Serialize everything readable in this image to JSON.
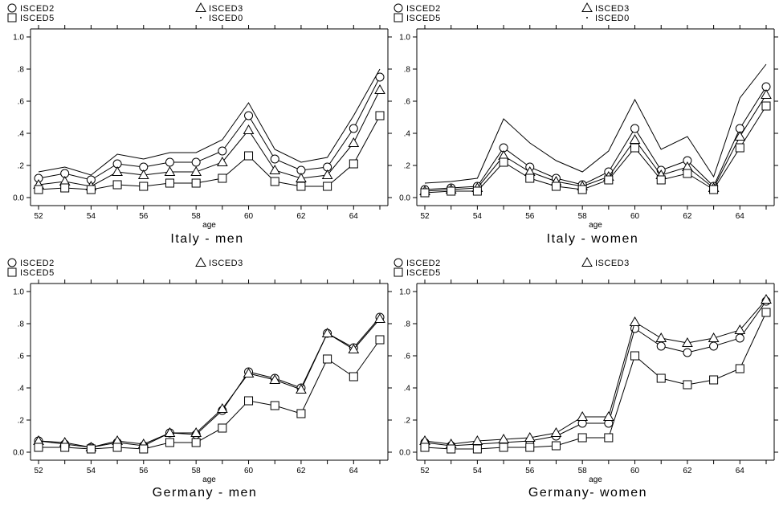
{
  "chart_data": [
    {
      "type": "line",
      "title": "Italy - men",
      "xlabel": "age",
      "ylabel": "",
      "x": [
        52,
        53,
        54,
        55,
        56,
        57,
        58,
        59,
        60,
        61,
        62,
        63,
        64,
        65
      ],
      "xticks": [
        "52",
        "54",
        "56",
        "58",
        "60",
        "62",
        "64"
      ],
      "yticks": [
        "0.0",
        ".2",
        ".4",
        ".6",
        ".8",
        "1.0"
      ],
      "ylim": [
        0,
        1
      ],
      "legend": [
        "ISCED2",
        "ISCED3",
        "ISCED5",
        "ISCED0"
      ],
      "series": [
        {
          "name": "ISCED2",
          "marker": "circle",
          "values": [
            0.12,
            0.15,
            0.11,
            0.21,
            0.19,
            0.22,
            0.22,
            0.29,
            0.51,
            0.24,
            0.17,
            0.19,
            0.43,
            0.75
          ]
        },
        {
          "name": "ISCED3",
          "marker": "triangle",
          "values": [
            0.08,
            0.1,
            0.07,
            0.16,
            0.14,
            0.16,
            0.16,
            0.22,
            0.42,
            0.17,
            0.12,
            0.14,
            0.34,
            0.67
          ]
        },
        {
          "name": "ISCED5",
          "marker": "square",
          "values": [
            0.05,
            0.06,
            0.05,
            0.08,
            0.07,
            0.09,
            0.09,
            0.12,
            0.26,
            0.1,
            0.07,
            0.07,
            0.21,
            0.51
          ]
        },
        {
          "name": "ISCED0",
          "marker": "none",
          "values": [
            0.16,
            0.19,
            0.14,
            0.27,
            0.24,
            0.28,
            0.28,
            0.36,
            0.59,
            0.3,
            0.22,
            0.25,
            0.51,
            0.8
          ]
        }
      ]
    },
    {
      "type": "line",
      "title": "Italy - women",
      "xlabel": "age",
      "ylabel": "",
      "x": [
        52,
        53,
        54,
        55,
        56,
        57,
        58,
        59,
        60,
        61,
        62,
        63,
        64,
        65
      ],
      "xticks": [
        "52",
        "54",
        "56",
        "58",
        "60",
        "62",
        "64"
      ],
      "yticks": [
        "0.0",
        ".2",
        ".4",
        ".6",
        ".8",
        "1.0"
      ],
      "ylim": [
        0,
        1
      ],
      "legend": [
        "ISCED2",
        "ISCED3",
        "ISCED5",
        "ISCED0"
      ],
      "series": [
        {
          "name": "ISCED2",
          "marker": "circle",
          "values": [
            0.05,
            0.06,
            0.07,
            0.31,
            0.19,
            0.12,
            0.08,
            0.16,
            0.43,
            0.17,
            0.23,
            0.07,
            0.43,
            0.69
          ]
        },
        {
          "name": "ISCED3",
          "marker": "triangle",
          "values": [
            0.04,
            0.05,
            0.06,
            0.26,
            0.16,
            0.1,
            0.07,
            0.13,
            0.36,
            0.14,
            0.19,
            0.06,
            0.38,
            0.64
          ]
        },
        {
          "name": "ISCED5",
          "marker": "square",
          "values": [
            0.03,
            0.04,
            0.04,
            0.22,
            0.12,
            0.07,
            0.05,
            0.11,
            0.31,
            0.11,
            0.15,
            0.05,
            0.31,
            0.57
          ]
        },
        {
          "name": "ISCED0",
          "marker": "none",
          "values": [
            0.09,
            0.1,
            0.12,
            0.49,
            0.34,
            0.23,
            0.16,
            0.29,
            0.61,
            0.3,
            0.38,
            0.13,
            0.62,
            0.83
          ]
        }
      ]
    },
    {
      "type": "line",
      "title": "Germany - men",
      "xlabel": "age",
      "ylabel": "",
      "x": [
        52,
        53,
        54,
        55,
        56,
        57,
        58,
        59,
        60,
        61,
        62,
        63,
        64,
        65
      ],
      "xticks": [
        "52",
        "54",
        "56",
        "58",
        "60",
        "62",
        "64"
      ],
      "yticks": [
        "0.0",
        ".2",
        ".4",
        ".6",
        ".8",
        "1.0"
      ],
      "ylim": [
        0,
        1
      ],
      "legend": [
        "ISCED2",
        "ISCED3",
        "ISCED5"
      ],
      "series": [
        {
          "name": "ISCED2",
          "marker": "circle",
          "values": [
            0.07,
            0.05,
            0.03,
            0.06,
            0.04,
            0.12,
            0.11,
            0.26,
            0.5,
            0.46,
            0.4,
            0.74,
            0.65,
            0.84
          ]
        },
        {
          "name": "ISCED3",
          "marker": "triangle",
          "values": [
            0.07,
            0.06,
            0.03,
            0.07,
            0.05,
            0.12,
            0.12,
            0.27,
            0.49,
            0.45,
            0.39,
            0.74,
            0.64,
            0.83
          ]
        },
        {
          "name": "ISCED5",
          "marker": "square",
          "values": [
            0.03,
            0.03,
            0.02,
            0.03,
            0.02,
            0.06,
            0.06,
            0.15,
            0.32,
            0.29,
            0.24,
            0.58,
            0.47,
            0.7
          ]
        }
      ]
    },
    {
      "type": "line",
      "title": "Germany- women",
      "xlabel": "age",
      "ylabel": "",
      "x": [
        52,
        53,
        54,
        55,
        56,
        57,
        58,
        59,
        60,
        61,
        62,
        63,
        64,
        65
      ],
      "xticks": [
        "52",
        "54",
        "56",
        "58",
        "60",
        "62",
        "64"
      ],
      "yticks": [
        "0.0",
        ".2",
        ".4",
        ".6",
        ".8",
        "1.0"
      ],
      "ylim": [
        0,
        1
      ],
      "legend": [
        "ISCED2",
        "ISCED3",
        "ISCED5"
      ],
      "series": [
        {
          "name": "ISCED2",
          "marker": "circle",
          "values": [
            0.06,
            0.04,
            0.05,
            0.06,
            0.07,
            0.1,
            0.18,
            0.18,
            0.77,
            0.66,
            0.62,
            0.66,
            0.71,
            0.94
          ]
        },
        {
          "name": "ISCED3",
          "marker": "triangle",
          "values": [
            0.07,
            0.05,
            0.07,
            0.08,
            0.09,
            0.12,
            0.22,
            0.22,
            0.81,
            0.71,
            0.68,
            0.71,
            0.76,
            0.95
          ]
        },
        {
          "name": "ISCED5",
          "marker": "square",
          "values": [
            0.03,
            0.02,
            0.02,
            0.03,
            0.03,
            0.04,
            0.09,
            0.09,
            0.6,
            0.46,
            0.42,
            0.45,
            0.52,
            0.87
          ]
        }
      ]
    }
  ]
}
